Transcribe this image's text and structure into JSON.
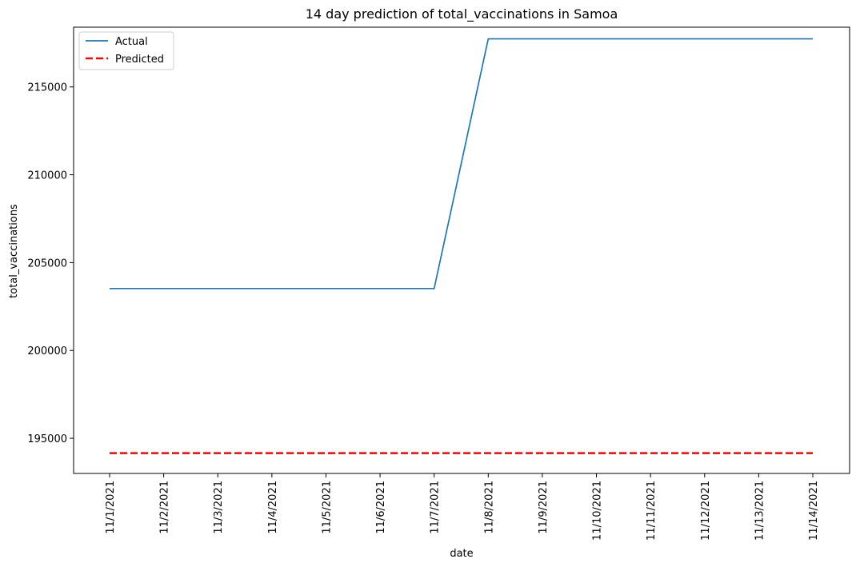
{
  "chart_data": {
    "type": "line",
    "title": "14 day prediction of total_vaccinations in Samoa",
    "xlabel": "date",
    "ylabel": "total_vaccinations",
    "x": [
      "11/1/2021",
      "11/2/2021",
      "11/3/2021",
      "11/4/2021",
      "11/5/2021",
      "11/6/2021",
      "11/7/2021",
      "11/8/2021",
      "11/9/2021",
      "11/10/2021",
      "11/11/2021",
      "11/12/2021",
      "11/13/2021",
      "11/14/2021"
    ],
    "y_ticks": [
      "195000",
      "200000",
      "205000",
      "210000",
      "215000"
    ],
    "ylim": [
      193000,
      218400
    ],
    "grid": false,
    "legend_position": "top-left",
    "series": [
      {
        "name": "Actual",
        "color": "#1f77b4",
        "style": "solid",
        "values": [
          203524,
          203524,
          203524,
          203524,
          203524,
          203524,
          203524,
          217738,
          217738,
          217738,
          217738,
          217738,
          217738,
          217738
        ]
      },
      {
        "name": "Predicted",
        "color": "#ff0000",
        "style": "dashed",
        "values": [
          194155,
          194155,
          194155,
          194155,
          194155,
          194155,
          194155,
          194155,
          194155,
          194155,
          194155,
          194155,
          194155,
          194155
        ]
      }
    ]
  }
}
